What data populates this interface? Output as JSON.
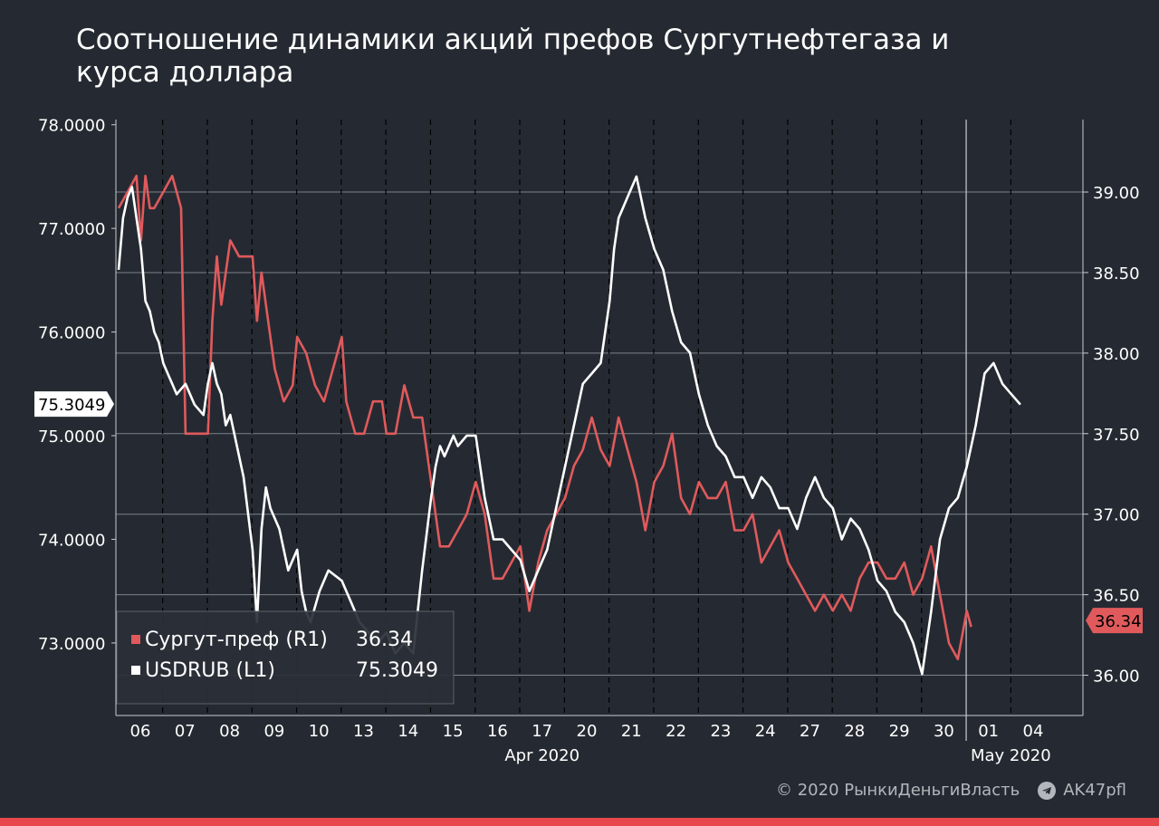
{
  "title_line1": "Соотношение динамики акций префов Сургутнефтегаза и",
  "title_line2": "курса доллара",
  "footer": {
    "copyright": "© 2020  РынкиДеньгиВласть",
    "telegram": "AK47pfl",
    "telegram_icon": "telegram-icon"
  },
  "colors": {
    "background": "#252a32",
    "usdrub": "#ffffff",
    "surgut": "#e05a5c",
    "accent_bar": "#e8474c"
  },
  "chart_data": {
    "type": "line",
    "title": "Соотношение динамики акций префов Сургутнефтегаза и курса доллара",
    "x_labels": [
      "06",
      "07",
      "08",
      "09",
      "10",
      "13",
      "14",
      "15",
      "16",
      "17",
      "20",
      "21",
      "22",
      "23",
      "24",
      "27",
      "28",
      "29",
      "30",
      "01",
      "04"
    ],
    "month_labels": [
      {
        "label": "Apr 2020",
        "at": "17"
      },
      {
        "label": "May 2020",
        "at": "01"
      }
    ],
    "y_left": {
      "ticks": [
        "78.0000",
        "77.0000",
        "76.0000",
        "75.0000",
        "74.0000",
        "73.0000"
      ],
      "ylim": [
        72.3,
        78.05
      ],
      "current_label": "75.3049"
    },
    "y_right": {
      "ticks": [
        "39.00",
        "38.50",
        "38.00",
        "37.50",
        "37.00",
        "36.50",
        "36.00"
      ],
      "ylim": [
        35.75,
        39.45
      ],
      "current_label": "36.34"
    },
    "legend": {
      "position": "bottom-left",
      "entries": [
        {
          "name": "Сургут-преф (R1)",
          "value": "36.34",
          "color": "#e05a5c"
        },
        {
          "name": "USDRUB (L1)",
          "value": "75.3049",
          "color": "#ffffff"
        }
      ]
    },
    "series": [
      {
        "name": "USDRUB",
        "axis": "left",
        "x": [
          0.0,
          0.1,
          0.2,
          0.3,
          0.4,
          0.5,
          0.6,
          0.7,
          0.8,
          0.9,
          1.0,
          1.1,
          1.2,
          1.3,
          1.5,
          1.7,
          1.9,
          2.0,
          2.1,
          2.2,
          2.3,
          2.4,
          2.5,
          2.6,
          2.8,
          3.0,
          3.1,
          3.2,
          3.3,
          3.4,
          3.6,
          3.8,
          4.0,
          4.1,
          4.2,
          4.3,
          4.5,
          4.7,
          5.0,
          5.2,
          5.4,
          5.6,
          5.8,
          6.0,
          6.2,
          6.4,
          6.6,
          6.8,
          7.0,
          7.1,
          7.2,
          7.3,
          7.4,
          7.5,
          7.6,
          7.8,
          8.0,
          8.2,
          8.4,
          8.6,
          8.8,
          9.0,
          9.2,
          9.4,
          9.6,
          9.8,
          10.0,
          10.2,
          10.4,
          10.6,
          10.8,
          11.0,
          11.1,
          11.2,
          11.3,
          11.4,
          11.6,
          11.8,
          12.0,
          12.2,
          12.4,
          12.6,
          12.8,
          13.0,
          13.2,
          13.4,
          13.6,
          13.8,
          14.0,
          14.2,
          14.4,
          14.6,
          14.8,
          15.0,
          15.2,
          15.4,
          15.6,
          15.8,
          16.0,
          16.2,
          16.4,
          16.6,
          16.8,
          17.0,
          17.2,
          17.4,
          17.6,
          17.8,
          18.0,
          18.2,
          18.4,
          18.6,
          18.8,
          19.0,
          19.2,
          19.4,
          19.6,
          19.8,
          20.0,
          20.2
        ],
        "values": [
          76.6,
          77.1,
          77.3,
          77.4,
          77.1,
          76.8,
          76.3,
          76.2,
          76.0,
          75.9,
          75.7,
          75.6,
          75.5,
          75.4,
          75.5,
          75.3,
          75.2,
          75.5,
          75.7,
          75.5,
          75.4,
          75.1,
          75.2,
          75.0,
          74.6,
          73.9,
          73.2,
          74.1,
          74.5,
          74.3,
          74.1,
          73.7,
          73.9,
          73.5,
          73.3,
          73.2,
          73.5,
          73.7,
          73.6,
          73.4,
          73.2,
          73.1,
          73.0,
          73.1,
          72.9,
          73.0,
          72.9,
          73.7,
          74.4,
          74.7,
          74.9,
          74.8,
          74.9,
          75.0,
          74.9,
          75.0,
          75.0,
          74.4,
          74.0,
          74.0,
          73.9,
          73.8,
          73.5,
          73.7,
          73.9,
          74.3,
          74.7,
          75.1,
          75.5,
          75.6,
          75.7,
          76.3,
          76.8,
          77.1,
          77.2,
          77.3,
          77.5,
          77.1,
          76.8,
          76.6,
          76.2,
          75.9,
          75.8,
          75.4,
          75.1,
          74.9,
          74.8,
          74.6,
          74.6,
          74.4,
          74.6,
          74.5,
          74.3,
          74.3,
          74.1,
          74.4,
          74.6,
          74.4,
          74.3,
          74.0,
          74.2,
          74.1,
          73.9,
          73.6,
          73.5,
          73.3,
          73.2,
          73.0,
          72.7,
          73.3,
          74.0,
          74.3,
          74.4,
          74.7,
          75.1,
          75.6,
          75.7,
          75.5,
          75.4,
          75.3
        ]
      },
      {
        "name": "Сургут-преф",
        "axis": "right",
        "x": [
          0.0,
          0.2,
          0.4,
          0.5,
          0.6,
          0.7,
          0.8,
          1.0,
          1.2,
          1.4,
          1.5,
          1.7,
          1.8,
          2.0,
          2.1,
          2.2,
          2.3,
          2.5,
          2.7,
          2.9,
          3.0,
          3.1,
          3.2,
          3.4,
          3.5,
          3.7,
          3.9,
          4.0,
          4.2,
          4.4,
          4.6,
          4.9,
          5.0,
          5.1,
          5.3,
          5.5,
          5.7,
          5.9,
          6.0,
          6.2,
          6.4,
          6.6,
          6.8,
          7.0,
          7.2,
          7.4,
          7.6,
          7.8,
          8.0,
          8.2,
          8.4,
          8.6,
          8.8,
          9.0,
          9.2,
          9.4,
          9.6,
          9.8,
          10.0,
          10.2,
          10.4,
          10.6,
          10.8,
          11.0,
          11.2,
          11.4,
          11.6,
          11.8,
          12.0,
          12.2,
          12.4,
          12.6,
          12.8,
          13.0,
          13.2,
          13.4,
          13.6,
          13.8,
          14.0,
          14.2,
          14.4,
          14.6,
          14.8,
          15.0,
          15.2,
          15.4,
          15.6,
          15.8,
          16.0,
          16.2,
          16.4,
          16.6,
          16.8,
          17.0,
          17.2,
          17.4,
          17.6,
          17.8,
          18.0,
          18.2,
          18.4,
          18.6,
          18.8,
          19.0,
          19.1
        ],
        "values": [
          38.9,
          39.0,
          39.1,
          38.7,
          39.1,
          38.9,
          38.9,
          39.0,
          39.1,
          38.9,
          37.5,
          37.5,
          37.5,
          37.5,
          38.2,
          38.6,
          38.3,
          38.7,
          38.6,
          38.6,
          38.6,
          38.2,
          38.5,
          38.1,
          37.9,
          37.7,
          37.8,
          38.1,
          38.0,
          37.8,
          37.7,
          38.0,
          38.1,
          37.7,
          37.5,
          37.5,
          37.7,
          37.7,
          37.5,
          37.5,
          37.8,
          37.6,
          37.6,
          37.2,
          36.8,
          36.8,
          36.9,
          37.0,
          37.2,
          37.0,
          36.6,
          36.6,
          36.7,
          36.8,
          36.4,
          36.7,
          36.9,
          37.0,
          37.1,
          37.3,
          37.4,
          37.6,
          37.4,
          37.3,
          37.6,
          37.4,
          37.2,
          36.9,
          37.2,
          37.3,
          37.5,
          37.1,
          37.0,
          37.2,
          37.1,
          37.1,
          37.2,
          36.9,
          36.9,
          37.0,
          36.7,
          36.8,
          36.9,
          36.7,
          36.6,
          36.5,
          36.4,
          36.5,
          36.4,
          36.5,
          36.4,
          36.6,
          36.7,
          36.7,
          36.6,
          36.6,
          36.7,
          36.5,
          36.6,
          36.8,
          36.5,
          36.2,
          36.1,
          36.4,
          36.3
        ]
      }
    ]
  }
}
